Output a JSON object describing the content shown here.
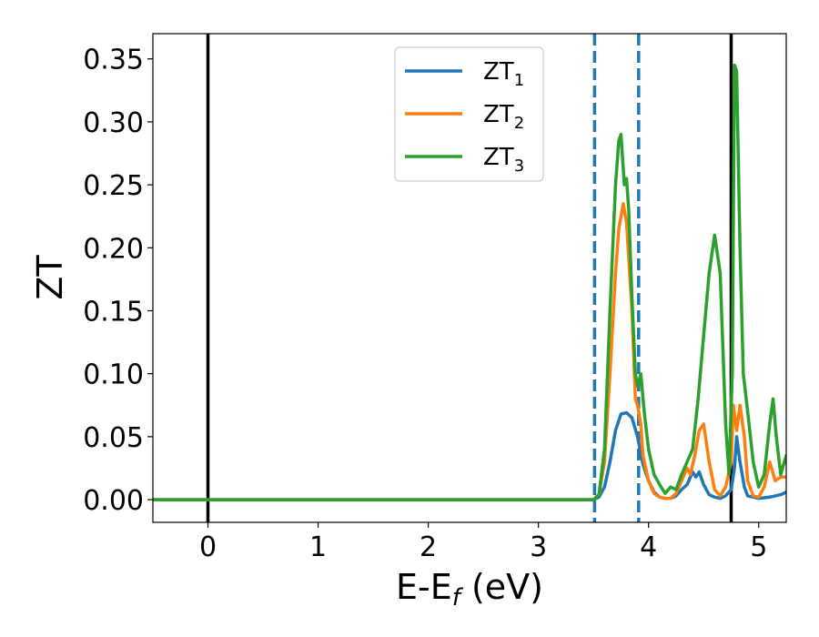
{
  "chart_data": {
    "type": "line",
    "xlabel": {
      "base": "E-E",
      "sub": "f",
      "suffix": " (eV)"
    },
    "ylabel": "ZT",
    "xlim": [
      -0.5,
      5.25
    ],
    "ylim": [
      -0.018,
      0.37
    ],
    "xticks": [
      0,
      1,
      2,
      3,
      4,
      5
    ],
    "xtick_labels": [
      "0",
      "1",
      "2",
      "3",
      "4",
      "5"
    ],
    "yticks": [
      0.0,
      0.05,
      0.1,
      0.15,
      0.2,
      0.25,
      0.3,
      0.35
    ],
    "ytick_labels": [
      "0.00",
      "0.05",
      "0.10",
      "0.15",
      "0.20",
      "0.25",
      "0.30",
      "0.35"
    ],
    "grid": false,
    "legend_position": "top-center",
    "vlines": [
      {
        "x": 0.0,
        "style": "solid",
        "color": "#000000"
      },
      {
        "x": 4.75,
        "style": "solid",
        "color": "#000000"
      },
      {
        "x": 3.51,
        "style": "dashed",
        "color": "#1f77b4"
      },
      {
        "x": 3.91,
        "style": "dashed",
        "color": "#1f77b4"
      }
    ],
    "series": [
      {
        "name": "ZT",
        "sub": "1",
        "color": "#1f77b4",
        "x": [
          -0.5,
          3.5,
          3.55,
          3.6,
          3.65,
          3.7,
          3.75,
          3.8,
          3.85,
          3.9,
          3.95,
          4.0,
          4.05,
          4.1,
          4.15,
          4.2,
          4.25,
          4.3,
          4.35,
          4.4,
          4.43,
          4.46,
          4.5,
          4.55,
          4.6,
          4.65,
          4.7,
          4.75,
          4.78,
          4.8,
          4.83,
          4.87,
          4.9,
          5.0,
          5.1,
          5.15,
          5.2,
          5.25
        ],
        "y": [
          0.0,
          0.0,
          0.002,
          0.01,
          0.03,
          0.055,
          0.068,
          0.069,
          0.065,
          0.05,
          0.028,
          0.015,
          0.006,
          0.002,
          0.001,
          0.001,
          0.003,
          0.008,
          0.012,
          0.022,
          0.018,
          0.022,
          0.012,
          0.004,
          0.002,
          0.001,
          0.003,
          0.008,
          0.025,
          0.05,
          0.03,
          0.01,
          0.003,
          0.001,
          0.002,
          0.003,
          0.004,
          0.006
        ]
      },
      {
        "name": "ZT",
        "sub": "2",
        "color": "#ff7f0e",
        "x": [
          -0.5,
          3.5,
          3.55,
          3.6,
          3.65,
          3.7,
          3.73,
          3.77,
          3.8,
          3.85,
          3.88,
          3.9,
          3.93,
          3.95,
          4.0,
          4.05,
          4.1,
          4.15,
          4.2,
          4.25,
          4.3,
          4.35,
          4.38,
          4.42,
          4.46,
          4.5,
          4.55,
          4.6,
          4.65,
          4.7,
          4.75,
          4.77,
          4.8,
          4.83,
          4.87,
          4.9,
          4.95,
          5.0,
          5.05,
          5.1,
          5.15,
          5.2,
          5.25
        ],
        "y": [
          0.0,
          0.0,
          0.004,
          0.03,
          0.1,
          0.18,
          0.215,
          0.235,
          0.22,
          0.15,
          0.08,
          0.075,
          0.06,
          0.035,
          0.015,
          0.005,
          0.002,
          0.001,
          0.001,
          0.005,
          0.015,
          0.025,
          0.02,
          0.035,
          0.055,
          0.06,
          0.03,
          0.008,
          0.003,
          0.01,
          0.03,
          0.075,
          0.055,
          0.075,
          0.05,
          0.015,
          0.003,
          0.002,
          0.01,
          0.03,
          0.015,
          0.018,
          0.018
        ]
      },
      {
        "name": "ZT",
        "sub": "3",
        "color": "#2ca02c",
        "x": [
          -0.5,
          3.5,
          3.55,
          3.6,
          3.65,
          3.7,
          3.73,
          3.75,
          3.78,
          3.8,
          3.82,
          3.85,
          3.88,
          3.9,
          3.93,
          3.96,
          4.0,
          4.05,
          4.1,
          4.15,
          4.2,
          4.25,
          4.3,
          4.35,
          4.4,
          4.45,
          4.5,
          4.55,
          4.6,
          4.65,
          4.7,
          4.73,
          4.76,
          4.78,
          4.8,
          4.83,
          4.86,
          4.9,
          4.95,
          5.0,
          5.05,
          5.1,
          5.13,
          5.16,
          5.2,
          5.25
        ],
        "y": [
          0.0,
          0.0,
          0.004,
          0.04,
          0.15,
          0.25,
          0.285,
          0.29,
          0.25,
          0.255,
          0.23,
          0.16,
          0.1,
          0.09,
          0.1,
          0.07,
          0.04,
          0.02,
          0.012,
          0.005,
          0.01,
          0.008,
          0.02,
          0.03,
          0.04,
          0.08,
          0.13,
          0.18,
          0.21,
          0.18,
          0.06,
          0.02,
          0.1,
          0.345,
          0.34,
          0.2,
          0.1,
          0.07,
          0.03,
          0.01,
          0.02,
          0.06,
          0.08,
          0.05,
          0.02,
          0.035
        ]
      }
    ]
  }
}
